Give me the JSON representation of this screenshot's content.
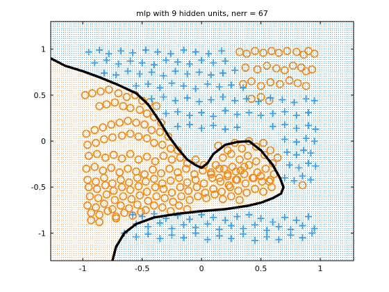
{
  "chart_data": {
    "type": "scatter",
    "title": "mlp with 9 hidden units, nerr = 67",
    "xlabel": "",
    "ylabel": "",
    "xlim": [
      -1.27,
      1.28
    ],
    "ylim": [
      -1.3,
      1.3
    ],
    "xticks": [
      -1,
      -0.5,
      0,
      0.5,
      1
    ],
    "xtick_labels": [
      "-1",
      "-0.5",
      "0",
      "0.5",
      "1"
    ],
    "yticks": [
      -1,
      -0.5,
      0,
      0.5,
      1
    ],
    "ytick_labels": [
      "-1",
      "-0.5",
      "0",
      "0.5",
      "1"
    ],
    "grid": false,
    "legend": "none",
    "regions": [
      {
        "class": "class-o",
        "color": "#f7a75c"
      },
      {
        "class": "class-plus",
        "color": "#3d9ee6"
      }
    ],
    "decision_boundary": {
      "color": "#000000",
      "x": [
        -1.27,
        -1.15,
        -1.0,
        -0.85,
        -0.7,
        -0.55,
        -0.45,
        -0.35,
        -0.28,
        -0.2,
        -0.12,
        -0.05,
        0.0,
        0.05,
        0.1,
        0.2,
        0.3,
        0.4,
        0.5,
        0.6,
        0.66,
        0.69,
        0.67,
        0.6,
        0.5,
        0.4,
        0.3,
        0.2,
        0.1,
        0.0,
        -0.2,
        -0.4,
        -0.55,
        -0.65,
        -0.72,
        -0.75
      ],
      "y": [
        0.9,
        0.82,
        0.76,
        0.69,
        0.61,
        0.52,
        0.4,
        0.21,
        0.06,
        -0.08,
        -0.2,
        -0.26,
        -0.29,
        -0.24,
        -0.14,
        -0.04,
        -0.01,
        0.0,
        -0.1,
        -0.26,
        -0.4,
        -0.5,
        -0.57,
        -0.62,
        -0.67,
        -0.7,
        -0.72,
        -0.74,
        -0.75,
        -0.76,
        -0.79,
        -0.83,
        -0.9,
        -1.0,
        -1.15,
        -1.3
      ]
    },
    "series": [
      {
        "marker": "o",
        "color": "#f08c1e",
        "x": [
          0.32,
          0.38,
          0.45,
          0.52,
          0.59,
          0.65,
          0.72,
          0.8,
          0.86,
          0.9,
          0.95,
          0.37,
          0.47,
          0.55,
          0.63,
          0.7,
          0.77,
          0.84,
          0.88,
          0.93,
          0.35,
          0.42,
          0.5,
          0.58,
          0.66,
          0.74,
          0.81,
          0.88,
          0.42,
          0.5,
          0.57,
          -0.98,
          -0.92,
          -0.85,
          -0.78,
          -0.7,
          -0.63,
          -0.56,
          -0.5,
          -0.44,
          -0.38,
          -0.86,
          -0.8,
          -0.73,
          -0.66,
          -0.6,
          -0.52,
          -0.46,
          -0.4,
          -0.34,
          -0.97,
          -0.9,
          -0.83,
          -0.76,
          -0.69,
          -0.62,
          -0.55,
          -0.48,
          -0.42,
          -0.35,
          -0.28,
          -0.96,
          -0.89,
          -0.82,
          -0.75,
          -0.67,
          -0.6,
          -0.53,
          -0.46,
          -0.4,
          -0.33,
          -0.26,
          -0.2,
          -0.95,
          -0.88,
          -0.81,
          -0.74,
          -0.67,
          -0.6,
          -0.53,
          -0.46,
          -0.39,
          -0.32,
          -0.25,
          -0.18,
          -0.12,
          -0.05,
          0.02,
          -0.97,
          -0.9,
          -0.83,
          -0.76,
          -0.69,
          -0.62,
          -0.55,
          -0.48,
          -0.41,
          -0.34,
          -0.27,
          -0.2,
          -0.13,
          -0.06,
          0.01,
          0.08,
          0.15,
          0.22,
          0.29,
          0.36,
          -0.96,
          -0.89,
          -0.82,
          -0.75,
          -0.68,
          -0.61,
          -0.54,
          -0.47,
          -0.4,
          -0.33,
          -0.26,
          -0.19,
          -0.12,
          -0.05,
          0.02,
          0.09,
          0.16,
          0.23,
          0.3,
          0.37,
          0.44,
          0.51,
          0.58,
          -0.95,
          -0.88,
          -0.81,
          -0.74,
          -0.67,
          -0.6,
          -0.53,
          -0.46,
          -0.39,
          -0.32,
          -0.25,
          -0.18,
          -0.11,
          -0.04,
          0.03,
          0.1,
          0.17,
          0.24,
          0.31,
          0.38,
          0.45,
          0.52,
          0.59,
          0.85,
          -0.94,
          -0.87,
          -0.8,
          -0.73,
          -0.66,
          -0.59,
          -0.52,
          -0.45,
          -0.38,
          -0.31,
          -0.24,
          -0.17,
          -0.1,
          -0.03,
          0.04,
          0.11,
          0.18,
          0.25,
          0.32,
          -0.96,
          -0.89,
          -0.82,
          -0.75,
          -0.68,
          -0.61,
          -0.54,
          -0.47,
          -0.4,
          -0.33,
          -0.26,
          -0.19,
          -0.12,
          -0.93,
          -0.86,
          -0.79,
          -0.72,
          -0.65,
          -0.58,
          -0.51,
          -0.93,
          -0.86,
          -0.72,
          0.14,
          0.22,
          0.28,
          0.34,
          0.4,
          0.46,
          0.52,
          0.58,
          0.64,
          0.18,
          0.25,
          0.32,
          0.39,
          0.46,
          0.53,
          0.6,
          0.12,
          0.19,
          0.26,
          0.33,
          0.4,
          0.47,
          0.54,
          0.61,
          0.08,
          0.15,
          0.22,
          0.29,
          0.36,
          0.43,
          0.5,
          0.57
        ],
        "y": [
          0.97,
          0.95,
          0.98,
          0.96,
          0.98,
          0.96,
          0.98,
          0.97,
          0.94,
          0.98,
          0.95,
          0.8,
          0.78,
          0.82,
          0.79,
          0.77,
          0.82,
          0.8,
          0.76,
          0.78,
          0.62,
          0.65,
          0.6,
          0.64,
          0.62,
          0.66,
          0.63,
          0.6,
          0.46,
          0.48,
          0.44,
          0.5,
          0.52,
          0.54,
          0.56,
          0.52,
          0.48,
          0.5,
          0.44,
          0.42,
          0.38,
          0.38,
          0.4,
          0.42,
          0.38,
          0.36,
          0.34,
          0.3,
          0.26,
          0.2,
          0.08,
          0.12,
          0.15,
          0.18,
          0.2,
          0.22,
          0.2,
          0.18,
          0.12,
          0.1,
          0.05,
          -0.04,
          -0.02,
          0.02,
          0.04,
          0.06,
          0.08,
          0.05,
          0.03,
          -0.02,
          -0.04,
          -0.08,
          -0.1,
          -0.16,
          -0.14,
          -0.18,
          -0.15,
          -0.19,
          -0.14,
          -0.2,
          -0.17,
          -0.22,
          -0.16,
          -0.2,
          -0.18,
          -0.24,
          -0.2,
          -0.26,
          -0.3,
          -0.28,
          -0.32,
          -0.29,
          -0.34,
          -0.3,
          -0.33,
          -0.36,
          -0.31,
          -0.35,
          -0.3,
          -0.34,
          -0.3,
          -0.36,
          -0.32,
          -0.34,
          -0.3,
          -0.36,
          -0.33,
          -0.28,
          -0.42,
          -0.44,
          -0.4,
          -0.46,
          -0.42,
          -0.45,
          -0.4,
          -0.44,
          -0.41,
          -0.46,
          -0.43,
          -0.4,
          -0.45,
          -0.42,
          -0.46,
          -0.4,
          -0.44,
          -0.48,
          -0.42,
          -0.46,
          -0.4,
          -0.44,
          -0.42,
          -0.5,
          -0.52,
          -0.48,
          -0.54,
          -0.5,
          -0.53,
          -0.49,
          -0.55,
          -0.5,
          -0.52,
          -0.56,
          -0.5,
          -0.54,
          -0.5,
          -0.56,
          -0.52,
          -0.55,
          -0.5,
          -0.54,
          -0.56,
          -0.52,
          -0.55,
          -0.5,
          -0.48,
          -0.6,
          -0.62,
          -0.58,
          -0.64,
          -0.6,
          -0.63,
          -0.59,
          -0.65,
          -0.6,
          -0.62,
          -0.66,
          -0.6,
          -0.64,
          -0.6,
          -0.62,
          -0.58,
          -0.63,
          -0.6,
          -0.64,
          -0.7,
          -0.72,
          -0.68,
          -0.74,
          -0.7,
          -0.73,
          -0.69,
          -0.75,
          -0.7,
          -0.72,
          -0.76,
          -0.7,
          -0.74,
          -0.78,
          -0.8,
          -0.76,
          -0.82,
          -0.78,
          -0.81,
          -0.77,
          -0.86,
          -0.88,
          -0.84,
          -0.05,
          -0.1,
          -0.02,
          -0.08,
          0.0,
          -0.06,
          -0.02,
          -0.1,
          -0.18,
          -0.18,
          -0.14,
          -0.2,
          -0.16,
          -0.22,
          -0.15,
          -0.24,
          -0.26,
          -0.3,
          -0.28,
          -0.32,
          -0.26,
          -0.34,
          -0.3,
          -0.36,
          -0.36,
          -0.4,
          -0.38,
          -0.42,
          -0.36,
          -0.4,
          -0.38,
          -0.44
        ]
      },
      {
        "marker": "+",
        "color": "#3d9ee6",
        "x": [
          -0.95,
          -0.86,
          -0.78,
          -0.68,
          -0.58,
          -0.47,
          -0.37,
          -0.26,
          -0.15,
          -0.05,
          0.06,
          0.17,
          -0.9,
          -0.8,
          -0.7,
          -0.6,
          -0.5,
          -0.4,
          -0.3,
          -0.2,
          -0.1,
          0.0,
          0.1,
          0.2,
          -0.82,
          -0.72,
          -0.62,
          -0.52,
          -0.42,
          -0.32,
          -0.22,
          -0.12,
          -0.02,
          0.08,
          0.18,
          0.28,
          -0.55,
          -0.45,
          -0.35,
          -0.25,
          -0.15,
          -0.05,
          0.05,
          0.15,
          0.25,
          0.35,
          -0.42,
          -0.32,
          -0.22,
          -0.12,
          -0.02,
          0.08,
          0.18,
          0.28,
          0.38,
          0.48,
          0.58,
          0.68,
          0.78,
          0.88,
          0.95,
          -0.3,
          -0.2,
          -0.1,
          0.0,
          0.1,
          0.2,
          0.3,
          0.4,
          0.5,
          0.6,
          0.7,
          0.8,
          0.9,
          -0.2,
          -0.1,
          0.0,
          0.1,
          0.2,
          0.3,
          0.6,
          0.7,
          0.8,
          0.9,
          0.96,
          0.7,
          0.8,
          0.88,
          0.95,
          0.72,
          0.8,
          0.86,
          0.92,
          0.74,
          0.82,
          0.9,
          0.96,
          0.7,
          0.78,
          0.85,
          0.92,
          -0.58,
          -0.5,
          -0.4,
          -0.3,
          -0.2,
          -0.1,
          0.0,
          0.1,
          0.2,
          0.3,
          0.4,
          0.5,
          0.6,
          0.7,
          0.8,
          0.9,
          -0.55,
          -0.45,
          -0.35,
          -0.25,
          -0.15,
          -0.05,
          0.05,
          0.15,
          0.25,
          0.35,
          0.45,
          0.55,
          0.65,
          0.75,
          0.85,
          0.95,
          -0.65,
          -0.55,
          -0.45,
          -0.35,
          -0.25,
          -0.15,
          -0.05,
          0.05,
          0.15,
          0.25,
          0.35,
          0.45,
          0.55,
          0.65,
          0.75,
          0.85,
          0.93
        ],
        "y": [
          0.97,
          0.99,
          0.95,
          0.98,
          0.96,
          0.99,
          0.97,
          0.95,
          0.99,
          0.97,
          0.95,
          0.98,
          0.85,
          0.88,
          0.84,
          0.87,
          0.85,
          0.83,
          0.88,
          0.86,
          0.84,
          0.88,
          0.85,
          0.87,
          0.74,
          0.72,
          0.76,
          0.73,
          0.75,
          0.71,
          0.76,
          0.73,
          0.75,
          0.72,
          0.74,
          0.77,
          0.6,
          0.62,
          0.58,
          0.63,
          0.6,
          0.57,
          0.62,
          0.59,
          0.61,
          0.58,
          0.46,
          0.48,
          0.44,
          0.47,
          0.43,
          0.45,
          0.48,
          0.44,
          0.46,
          0.43,
          0.47,
          0.45,
          0.42,
          0.46,
          0.44,
          0.3,
          0.32,
          0.28,
          0.31,
          0.27,
          0.33,
          0.29,
          0.31,
          0.28,
          0.3,
          0.32,
          0.28,
          0.31,
          0.16,
          0.18,
          0.14,
          0.17,
          0.13,
          0.15,
          0.16,
          0.18,
          0.14,
          0.17,
          0.13,
          0.02,
          -0.01,
          0.03,
          0.0,
          -0.12,
          -0.15,
          -0.1,
          -0.13,
          -0.26,
          -0.29,
          -0.24,
          -0.27,
          -0.4,
          -0.43,
          -0.38,
          -0.42,
          -0.8,
          -0.82,
          -0.79,
          -0.84,
          -0.81,
          -0.85,
          -0.8,
          -0.83,
          -0.86,
          -0.82,
          -0.8,
          -0.84,
          -0.88,
          -0.83,
          -0.86,
          -0.82,
          -0.9,
          -0.93,
          -0.89,
          -0.95,
          -0.91,
          -0.94,
          -0.9,
          -0.96,
          -0.92,
          -0.95,
          -0.91,
          -0.97,
          -0.93,
          -0.96,
          -0.92,
          -0.95,
          -1.0,
          -1.04,
          -1.01,
          -1.06,
          -1.02,
          -1.05,
          -1.0,
          -1.07,
          -1.03,
          -1.06,
          -1.01,
          -1.08,
          -1.04,
          -1.07,
          -1.02,
          -1.05,
          -1.0
        ]
      }
    ]
  }
}
